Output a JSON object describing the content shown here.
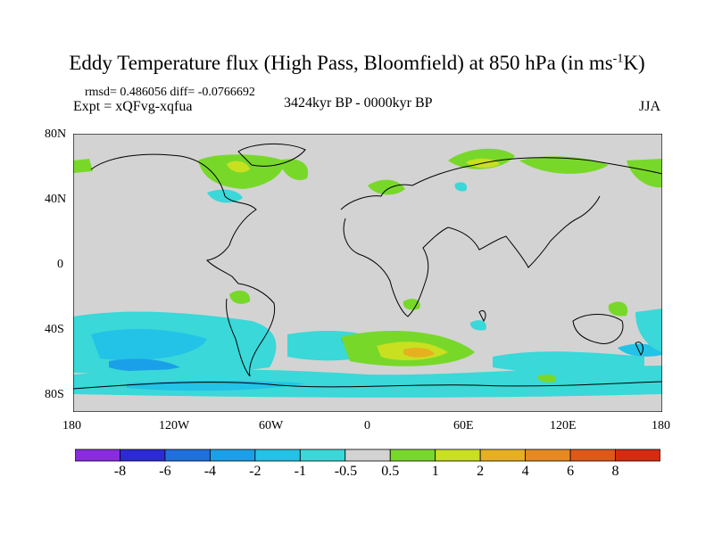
{
  "title": {
    "main": "Eddy Temperature flux (High Pass, Bloomfield) at 850 hPa (in ms",
    "sup": "-1",
    "tail": "K)"
  },
  "stats": "rmsd= 0.486056 diff= -0.0766692",
  "experiment": "Expt = xQFvg-xqfua",
  "period": "3424kyr BP - 0000kyr BP",
  "season": "JJA",
  "axes": {
    "y_ticks": [
      "80N",
      "40N",
      "0",
      "40S",
      "80S"
    ],
    "x_ticks": [
      "180",
      "120W",
      "60W",
      "0",
      "60E",
      "120E",
      "180"
    ]
  },
  "colorbar": {
    "labels": [
      "-8",
      "-6",
      "-4",
      "-2",
      "-1",
      "-0.5",
      "0.5",
      "1",
      "2",
      "4",
      "6",
      "8"
    ],
    "colors": [
      "#8a2be2",
      "#2a2ad6",
      "#1f6fe0",
      "#1aa0e8",
      "#22c3e6",
      "#3ad8d8",
      "#d3d3d3",
      "#78d82a",
      "#c8e020",
      "#e6b020",
      "#e68a20",
      "#e05818",
      "#d82a10"
    ]
  },
  "colors": {
    "ocean_land_neutral": "#d3d3d3"
  }
}
